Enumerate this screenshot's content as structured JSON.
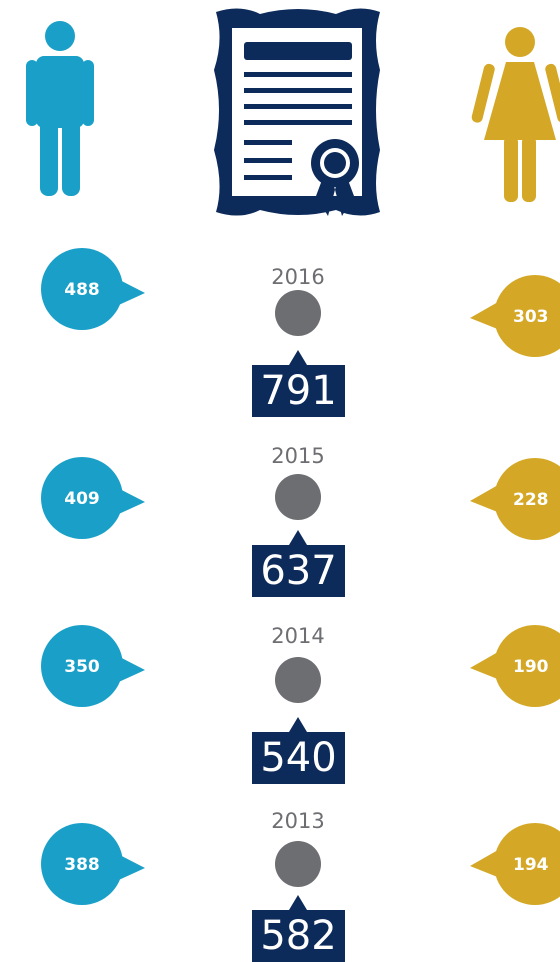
{
  "rows": [
    {
      "year": "2016",
      "men": 488,
      "total": 791,
      "women": 303
    },
    {
      "year": "2015",
      "men": 409,
      "total": 637,
      "women": 228
    },
    {
      "year": "2014",
      "men": 350,
      "total": 540,
      "women": 190
    },
    {
      "year": "2013",
      "men": 388,
      "total": 582,
      "women": 194
    }
  ]
}
